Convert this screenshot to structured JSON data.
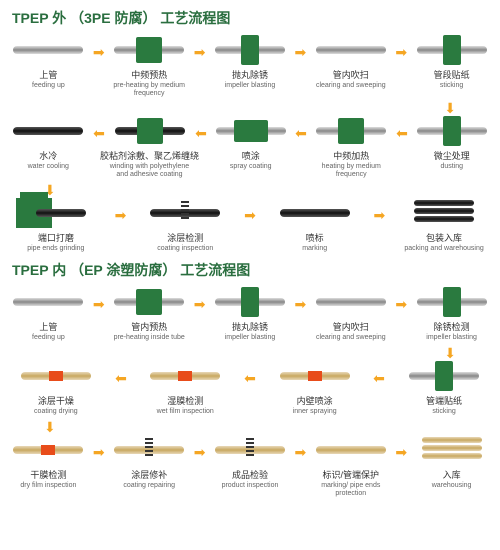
{
  "diagrams": [
    {
      "title": "TPEP 外 （3PE 防腐） 工艺流程图",
      "title_color": "#2a6e3f",
      "rows": [
        {
          "direction": "right",
          "steps": [
            {
              "cn": "上管",
              "en": "feeding up",
              "icon": "pipe"
            },
            {
              "cn": "中频预热",
              "en": "pre-heating by medium frequency",
              "icon": "pipe-box"
            },
            {
              "cn": "抛丸除锈",
              "en": "impeller blasting",
              "icon": "pipe-box-narrow"
            },
            {
              "cn": "管内吹扫",
              "en": "clearing and sweeping",
              "icon": "pipe"
            },
            {
              "cn": "管段贴纸",
              "en": "sticking",
              "icon": "pipe-box-narrow"
            }
          ]
        },
        {
          "direction": "left",
          "steps": [
            {
              "cn": "水冷",
              "en": "water cooling",
              "icon": "pipe-dark"
            },
            {
              "cn": "胶粘剂涂敷、聚乙烯缠绕",
              "en": "winding with polyethylene and adhesive coating",
              "icon": "pipe-dark-box"
            },
            {
              "cn": "喷涂",
              "en": "spray coating",
              "icon": "pipe-box-wide"
            },
            {
              "cn": "中频加热",
              "en": "heating by medium frequency",
              "icon": "pipe-box"
            },
            {
              "cn": "微尘处理",
              "en": "dusting",
              "icon": "pipe-box-narrow"
            }
          ]
        },
        {
          "direction": "right",
          "steps": [
            {
              "cn": "端口打磨",
              "en": "pipe ends grinding",
              "icon": "machine-pipe"
            },
            {
              "cn": "涂层检测",
              "en": "coating inspection",
              "icon": "pipe-dark-spring"
            },
            {
              "cn": "喷标",
              "en": "marking",
              "icon": "pipe-dark"
            },
            {
              "cn": "包装入库",
              "en": "packing and warehousing",
              "icon": "stack"
            }
          ]
        }
      ]
    },
    {
      "title": "TPEP 内 （EP 涂塑防腐） 工艺流程图",
      "title_color": "#2a6e3f",
      "rows": [
        {
          "direction": "right",
          "steps": [
            {
              "cn": "上管",
              "en": "feeding up",
              "icon": "pipe"
            },
            {
              "cn": "管内预热",
              "en": "pre-heating inside tube",
              "icon": "pipe-box"
            },
            {
              "cn": "抛丸除锈",
              "en": "impeller blasting",
              "icon": "pipe-box-narrow"
            },
            {
              "cn": "管内吹扫",
              "en": "clearing and sweeping",
              "icon": "pipe"
            },
            {
              "cn": "除锈检测",
              "en": "impeller blasting",
              "icon": "pipe-box-narrow"
            }
          ]
        },
        {
          "direction": "left",
          "steps": [
            {
              "cn": "涂层干燥",
              "en": "coating drying",
              "icon": "pipe-tan-red"
            },
            {
              "cn": "湿膜检测",
              "en": "wet film inspection",
              "icon": "pipe-tan-red"
            },
            {
              "cn": "内壁喷涂",
              "en": "inner spraying",
              "icon": "pipe-tan-red"
            },
            {
              "cn": "管端贴纸",
              "en": "sticking",
              "icon": "pipe-box-narrow"
            }
          ]
        },
        {
          "direction": "right",
          "steps": [
            {
              "cn": "干膜检测",
              "en": "dry film inspection",
              "icon": "pipe-tan-red"
            },
            {
              "cn": "涂层修补",
              "en": "coating repairing",
              "icon": "pipe-tan-spring"
            },
            {
              "cn": "成品检验",
              "en": "product inspection",
              "icon": "pipe-tan-spring"
            },
            {
              "cn": "标识/管端保护",
              "en": "marking/ pipe ends protection",
              "icon": "pipe-tan"
            },
            {
              "cn": "入库",
              "en": "warehousing",
              "icon": "stack-tan"
            }
          ]
        }
      ]
    }
  ],
  "colors": {
    "arrow": "#f5a623",
    "green": "#2a7a3f",
    "red": "#e84c1a"
  }
}
